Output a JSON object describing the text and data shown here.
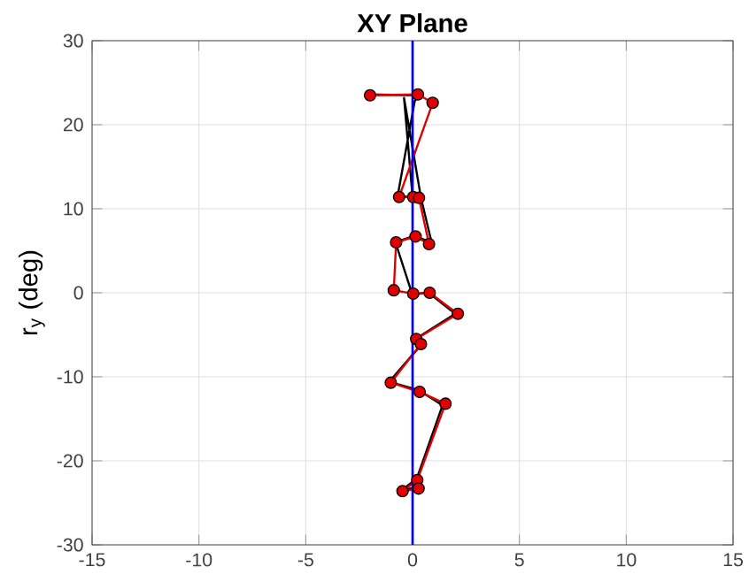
{
  "chart_data": {
    "type": "line",
    "title": "XY Plane",
    "ylabel": "r$_{y}$ (deg)",
    "xlim": [
      -15,
      15
    ],
    "ylim": [
      -30,
      30
    ],
    "xticks": [
      -15,
      -10,
      -5,
      0,
      5,
      10,
      15
    ],
    "yticks": [
      -30,
      -20,
      -10,
      0,
      10,
      20,
      30
    ],
    "grid": true,
    "series": [
      {
        "color": "#000000",
        "marker": "none",
        "x": [
          -2.2,
          0.3,
          0.1,
          -0.7,
          0.0,
          -0.4,
          0.4,
          0.9,
          0.1,
          -0.8,
          0.0,
          0.7,
          2.0,
          0.2,
          0.4,
          -1.1,
          0.3,
          1.4,
          0.2,
          -0.5,
          0.3
        ],
        "values": [
          23.6,
          23.5,
          22.8,
          11.5,
          11.4,
          23.2,
          11.2,
          5.9,
          6.8,
          6.0,
          -0.3,
          0.1,
          -2.5,
          -5.4,
          -6.2,
          -10.6,
          -11.6,
          -13.4,
          -22.1,
          -23.5,
          -23.1
        ]
      },
      {
        "color": "#e00000",
        "marker": "circle",
        "x": [
          -1.99,
          0.25,
          0.94,
          -0.63,
          0.03,
          0.3,
          0.77,
          0.14,
          -0.77,
          -0.88,
          0.03,
          0.8,
          2.12,
          0.17,
          0.39,
          -1.02,
          0.33,
          1.54,
          0.22,
          -0.47,
          0.28
        ],
        "values": [
          23.5,
          23.6,
          22.6,
          11.4,
          11.4,
          11.3,
          5.8,
          6.7,
          6.0,
          0.3,
          -0.1,
          0.0,
          -2.5,
          -5.5,
          -6.1,
          -10.7,
          -11.8,
          -13.2,
          -22.3,
          -23.6,
          -23.3
        ]
      }
    ],
    "ref_lines": [
      {
        "axis": "x",
        "value": 0,
        "color": "#0000ff"
      }
    ]
  }
}
